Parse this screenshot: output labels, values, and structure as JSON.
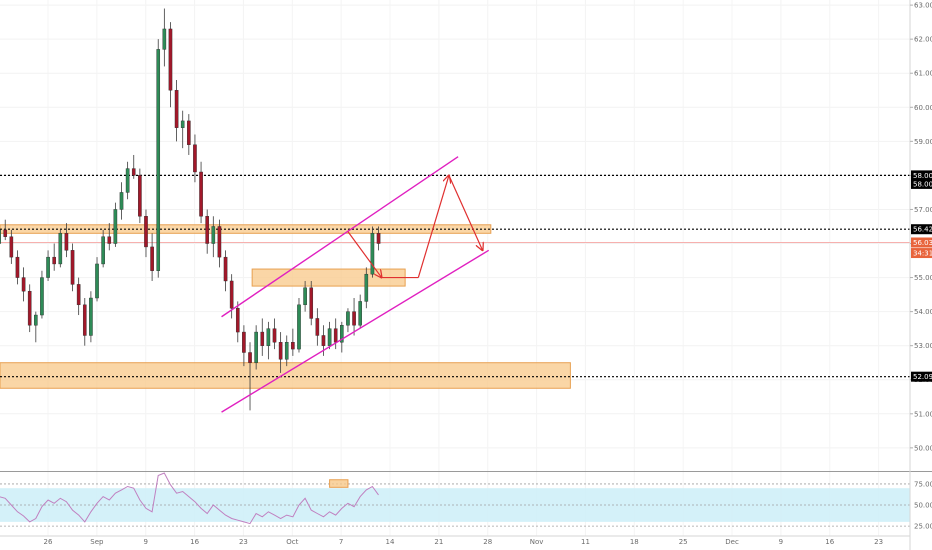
{
  "chart_data": {
    "type": "candlestick",
    "x_tick_labels": [
      "26",
      "Sep",
      "9",
      "16",
      "23",
      "Oct",
      "7",
      "14",
      "21",
      "28",
      "Nov",
      "11",
      "18",
      "25",
      "Dec",
      "9",
      "16",
      "23"
    ],
    "price_axis": {
      "ylim": [
        49.35,
        63.15
      ],
      "tick_labels": [
        "50.00",
        "51.00",
        "52.00",
        "53.00",
        "54.00",
        "55.00",
        "56.00",
        "57.00",
        "58.00",
        "59.00",
        "60.00",
        "61.00",
        "62.00",
        "63.00"
      ]
    },
    "rsi_axis": {
      "ylim": [
        18,
        88
      ],
      "tick_labels": [
        "25.00",
        "50.00",
        "75.00"
      ],
      "band": [
        30,
        70
      ]
    },
    "price_tags": [
      {
        "label": "58.00",
        "value": 58.0,
        "color": "#000000"
      },
      {
        "label": "58.00",
        "value": 57.75,
        "color": "#000000"
      },
      {
        "label": "56.42",
        "value": 56.42,
        "color": "#000000"
      },
      {
        "label": "56.03",
        "value": 56.03,
        "color": "#e8643c"
      },
      {
        "label": "34:31",
        "value": 55.72,
        "color": "#e8643c"
      },
      {
        "label": "52.09",
        "value": 52.09,
        "color": "#000000"
      }
    ],
    "horizontal_lines": [
      {
        "value": 58.0,
        "style": "dotted",
        "color": "#000000"
      },
      {
        "value": 56.42,
        "style": "dotted",
        "color": "#000000"
      },
      {
        "value": 52.09,
        "style": "dotted",
        "color": "#000000"
      },
      {
        "value": 56.03,
        "style": "solid",
        "color": "#f7b0ae"
      }
    ],
    "zones": [
      {
        "name": "resistance-zone",
        "day_start": -5,
        "day_end": 79,
        "low": 56.3,
        "high": 56.55
      },
      {
        "name": "mid-zone",
        "day_start": 40,
        "day_end": 65,
        "low": 54.75,
        "high": 55.25
      },
      {
        "name": "support-zone",
        "day_start": -5,
        "day_end": 92,
        "low": 51.75,
        "high": 52.5
      },
      {
        "name": "rsi-zone",
        "day_start": 52,
        "day_end": 55,
        "low": 71,
        "high": 80
      }
    ],
    "channel": {
      "upper": [
        [
          35,
          53.85
        ],
        [
          73,
          58.55
        ]
      ],
      "lower": [
        [
          35,
          51.05
        ],
        [
          78,
          55.8
        ]
      ]
    },
    "projection_arrows": [
      [
        [
          55,
          56.35
        ],
        [
          60.5,
          55.0
        ]
      ],
      [
        [
          60.5,
          55.0
        ],
        [
          66.5,
          55.0
        ]
      ],
      [
        [
          66.5,
          55.0
        ],
        [
          71.5,
          58.0
        ]
      ],
      [
        [
          71.5,
          58.0
        ],
        [
          77,
          55.8
        ]
      ]
    ],
    "candles": [
      [
        -3,
        55.9,
        56.2,
        55.5,
        56.0
      ],
      [
        -2,
        56.0,
        56.5,
        55.8,
        56.4
      ],
      [
        -1,
        56.4,
        56.7,
        56.1,
        56.2
      ],
      [
        0,
        56.2,
        56.4,
        55.4,
        55.6
      ],
      [
        1,
        55.6,
        55.8,
        54.8,
        55.0
      ],
      [
        2,
        55.0,
        55.3,
        54.3,
        54.6
      ],
      [
        3,
        54.6,
        54.8,
        53.4,
        53.6
      ],
      [
        4,
        53.6,
        54.0,
        53.1,
        53.9
      ],
      [
        5,
        53.9,
        55.2,
        53.8,
        55.0
      ],
      [
        6,
        55.0,
        55.8,
        54.9,
        55.6
      ],
      [
        7,
        55.6,
        56.0,
        55.2,
        55.4
      ],
      [
        8,
        55.4,
        56.4,
        55.3,
        56.3
      ],
      [
        9,
        56.3,
        56.6,
        55.6,
        55.8
      ],
      [
        10,
        55.8,
        56.0,
        54.6,
        54.8
      ],
      [
        11,
        54.8,
        55.0,
        53.9,
        54.2
      ],
      [
        12,
        54.2,
        54.4,
        53.0,
        53.3
      ],
      [
        13,
        53.3,
        54.6,
        53.1,
        54.4
      ],
      [
        14,
        54.4,
        55.6,
        54.3,
        55.4
      ],
      [
        15,
        55.4,
        56.4,
        55.3,
        56.2
      ],
      [
        16,
        56.2,
        56.6,
        55.8,
        56.0
      ],
      [
        17,
        56.0,
        57.2,
        55.9,
        57.0
      ],
      [
        18,
        57.0,
        57.8,
        56.7,
        57.5
      ],
      [
        19,
        57.5,
        58.4,
        57.3,
        58.2
      ],
      [
        20,
        58.2,
        58.6,
        57.9,
        58.0
      ],
      [
        21,
        58.0,
        58.2,
        56.6,
        56.8
      ],
      [
        22,
        56.8,
        57.0,
        55.6,
        55.9
      ],
      [
        23,
        55.9,
        56.3,
        54.9,
        55.2
      ],
      [
        24,
        55.2,
        62.0,
        55.0,
        61.7
      ],
      [
        25,
        61.7,
        62.9,
        61.2,
        62.3
      ],
      [
        26,
        62.3,
        62.5,
        60.0,
        60.5
      ],
      [
        27,
        60.5,
        60.8,
        59.0,
        59.4
      ],
      [
        28,
        59.4,
        59.9,
        58.8,
        59.6
      ],
      [
        29,
        59.6,
        59.8,
        58.6,
        58.9
      ],
      [
        30,
        58.9,
        59.2,
        57.8,
        58.1
      ],
      [
        31,
        58.1,
        58.4,
        56.6,
        56.8
      ],
      [
        32,
        56.8,
        57.0,
        55.7,
        56.0
      ],
      [
        33,
        56.0,
        56.8,
        55.6,
        56.5
      ],
      [
        34,
        56.5,
        56.7,
        55.3,
        55.6
      ],
      [
        35,
        55.6,
        55.8,
        54.6,
        54.9
      ],
      [
        36,
        54.9,
        55.1,
        53.8,
        54.1
      ],
      [
        37,
        54.1,
        54.3,
        53.1,
        53.4
      ],
      [
        38,
        53.4,
        53.6,
        52.4,
        52.8
      ],
      [
        39,
        52.8,
        53.1,
        51.1,
        52.5
      ],
      [
        40,
        52.5,
        53.6,
        52.3,
        53.4
      ],
      [
        41,
        53.4,
        53.8,
        52.7,
        53.0
      ],
      [
        42,
        53.0,
        53.7,
        52.6,
        53.5
      ],
      [
        43,
        53.5,
        53.8,
        52.9,
        53.1
      ],
      [
        44,
        53.1,
        53.4,
        52.2,
        52.6
      ],
      [
        45,
        52.6,
        53.3,
        52.4,
        53.1
      ],
      [
        46,
        53.1,
        53.5,
        52.7,
        52.9
      ],
      [
        47,
        52.9,
        54.4,
        52.8,
        54.2
      ],
      [
        48,
        54.2,
        54.9,
        54.0,
        54.7
      ],
      [
        49,
        54.7,
        54.9,
        53.6,
        53.8
      ],
      [
        50,
        53.8,
        54.1,
        53.0,
        53.3
      ],
      [
        51,
        53.3,
        53.6,
        52.7,
        53.0
      ],
      [
        52,
        53.0,
        53.7,
        52.9,
        53.5
      ],
      [
        53,
        53.5,
        53.8,
        52.9,
        53.1
      ],
      [
        54,
        53.1,
        53.7,
        52.8,
        53.6
      ],
      [
        55,
        53.6,
        54.1,
        53.4,
        54.0
      ],
      [
        56,
        54.0,
        54.4,
        53.3,
        53.6
      ],
      [
        57,
        53.6,
        54.5,
        53.5,
        54.3
      ],
      [
        58,
        54.3,
        55.3,
        54.1,
        55.1
      ],
      [
        59,
        55.1,
        56.5,
        55.0,
        56.3
      ],
      [
        60,
        56.3,
        56.5,
        55.8,
        56.0
      ]
    ],
    "rsi": [
      56,
      60,
      58,
      50,
      42,
      37,
      30,
      34,
      48,
      56,
      52,
      58,
      54,
      44,
      38,
      30,
      42,
      52,
      60,
      56,
      64,
      68,
      72,
      70,
      56,
      46,
      42,
      85,
      88,
      74,
      64,
      66,
      60,
      54,
      46,
      40,
      50,
      44,
      38,
      34,
      32,
      30,
      28,
      40,
      36,
      42,
      38,
      34,
      38,
      36,
      50,
      58,
      44,
      40,
      36,
      42,
      38,
      46,
      52,
      48,
      60,
      68,
      72,
      62
    ]
  }
}
